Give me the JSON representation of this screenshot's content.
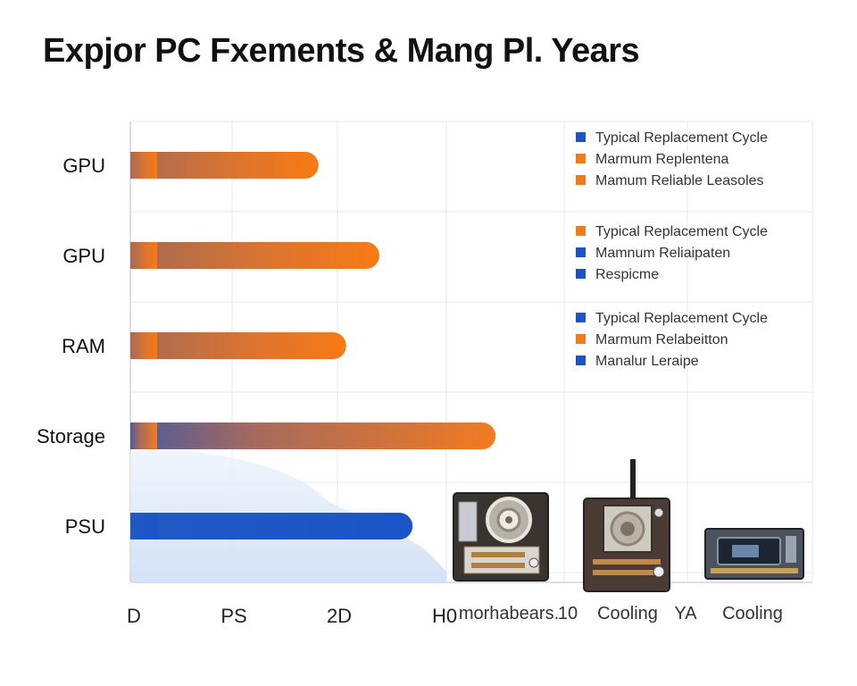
{
  "chart_data": {
    "type": "bar",
    "orientation": "horizontal",
    "title": "Expjor PC Fxements & Mang Pl. Years",
    "categories": [
      "GPU",
      "GPU",
      "RAM",
      "Storage",
      "PSU"
    ],
    "values": [
      3.4,
      4.5,
      3.9,
      6.6,
      5.1
    ],
    "bar_colors": [
      "#f07b1c",
      "#f07b1c",
      "#f07b1c",
      "#f07b1c",
      "#1a55c2"
    ],
    "x_tick_labels": [
      "D",
      "PS",
      "2D",
      "H0"
    ],
    "xlim": [
      0,
      10
    ],
    "grid": true,
    "legend_placement": "top-right",
    "legend_groups": [
      [
        {
          "label": "Typical Replacement Cycle",
          "color": "#1a55c2"
        },
        {
          "label": "Marmum Replentena",
          "color": "#f07b1c"
        },
        {
          "label": "Mamum Reliable Leasoles",
          "color": "#f07b1c"
        }
      ],
      [
        {
          "label": "Typical Replacement Cycle",
          "color": "#f07b1c"
        },
        {
          "label": "Mamnum Reliaipaten",
          "color": "#1a55c2"
        },
        {
          "label": "Respicme",
          "color": "#1a55c2"
        }
      ],
      [
        {
          "label": "Typical Replacement Cycle",
          "color": "#1a55c2"
        },
        {
          "label": "Marmum Relabeitton",
          "color": "#f07b1c"
        },
        {
          "label": "Manalur Leraipe",
          "color": "#1a55c2"
        }
      ]
    ],
    "component_labels": [
      "morhabears.",
      "10",
      "Cooling",
      "YA",
      "Cooling"
    ],
    "component_icons": [
      "motherboard-chip-icon",
      "cooling-fan-board-icon",
      "gpu-card-icon"
    ]
  }
}
